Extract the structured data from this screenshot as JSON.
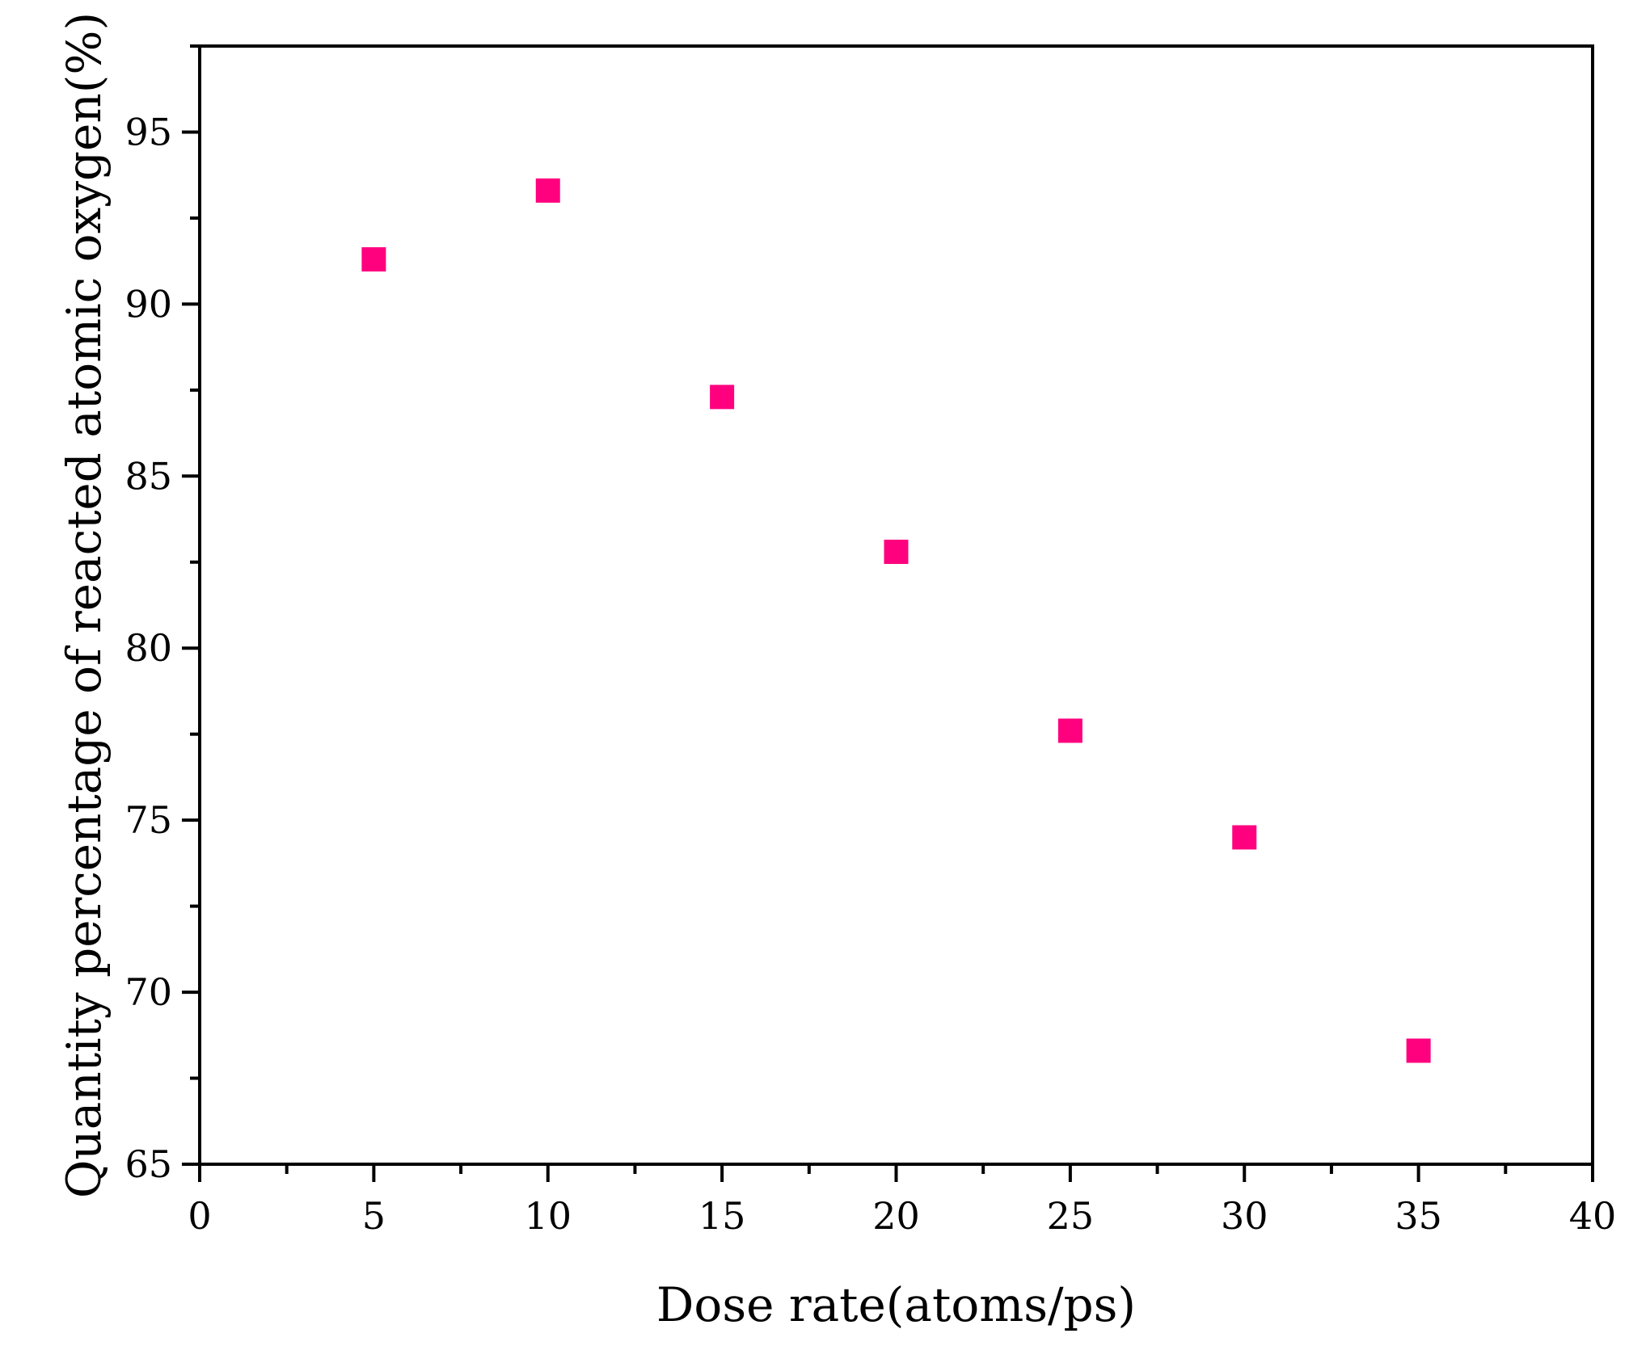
{
  "chart_data": {
    "type": "scatter",
    "title": "",
    "xlabel": "Dose rate(atoms/ps)",
    "ylabel": "Quantity percentage of reacted atomic oxygen(%)",
    "xlim": [
      0,
      40
    ],
    "ylim": [
      65,
      97.5
    ],
    "xticks": [
      0,
      5,
      10,
      15,
      20,
      25,
      30,
      35,
      40
    ],
    "yticks": [
      65,
      70,
      75,
      80,
      85,
      90,
      95
    ],
    "grid": false,
    "legend": "none",
    "series": [
      {
        "color": "#ff007f",
        "marker": "square",
        "x": [
          5,
          10,
          15,
          20,
          25,
          30,
          35
        ],
        "y": [
          91.3,
          93.3,
          87.3,
          82.8,
          77.6,
          74.5,
          68.3
        ]
      }
    ]
  }
}
